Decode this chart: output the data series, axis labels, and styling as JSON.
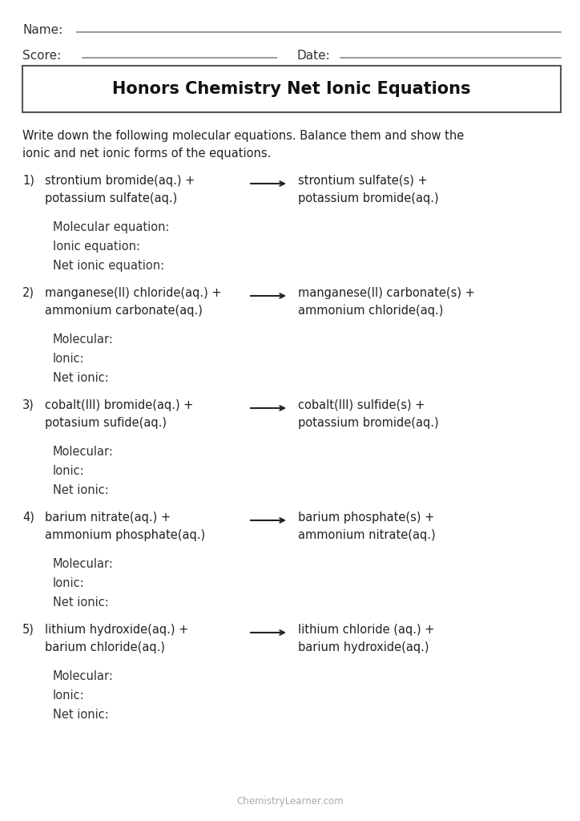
{
  "title": "Honors Chemistry Net Ionic Equations",
  "bg_color": "#ffffff",
  "text_color": "#333333",
  "title_fontsize": 15,
  "body_fontsize": 10.5,
  "name_line": "Name:",
  "score_line": "Score:",
  "date_line": "Date:",
  "instructions": "Write down the following molecular equations. Balance them and show the\nionic and net ionic forms of the equations.",
  "footer": "ChemistryLearner.com",
  "reactions": [
    {
      "num": "1)",
      "reactants_line1": "strontium bromide(aq.) +",
      "reactants_line2": "potassium sulfate(aq.)",
      "products_line1": "strontium sulfate(s) +",
      "products_line2": "potassium bromide(aq.)",
      "labels": [
        "Molecular equation:",
        "Ionic equation:",
        "Net ionic equation:"
      ]
    },
    {
      "num": "2)",
      "reactants_line1": "manganese(II) chloride(aq.) +",
      "reactants_line2": "ammonium carbonate(aq.)",
      "products_line1": "manganese(II) carbonate(s) +",
      "products_line2": "ammonium chloride(aq.)",
      "labels": [
        "Molecular:",
        "Ionic:",
        "Net ionic:"
      ]
    },
    {
      "num": "3)",
      "reactants_line1": "cobalt(III) bromide(aq.) +",
      "reactants_line2": "potasium sufide(aq.)",
      "products_line1": "cobalt(III) sulfide(s) +",
      "products_line2": "potassium bromide(aq.)",
      "labels": [
        "Molecular:",
        "Ionic:",
        "Net ionic:"
      ]
    },
    {
      "num": "4)",
      "reactants_line1": "barium nitrate(aq.) +",
      "reactants_line2": "ammonium phosphate(aq.)",
      "products_line1": "barium phosphate(s) +",
      "products_line2": "ammonium nitrate(aq.)",
      "labels": [
        "Molecular:",
        "Ionic:",
        "Net ionic:"
      ]
    },
    {
      "num": "5)",
      "reactants_line1": "lithium hydroxide(aq.) +",
      "reactants_line2": "barium chloride(aq.)",
      "products_line1": "lithium chloride (aq.) +",
      "products_line2": "barium hydroxide(aq.)",
      "labels": [
        "Molecular:",
        "Ionic:",
        "Net ionic:"
      ]
    }
  ]
}
